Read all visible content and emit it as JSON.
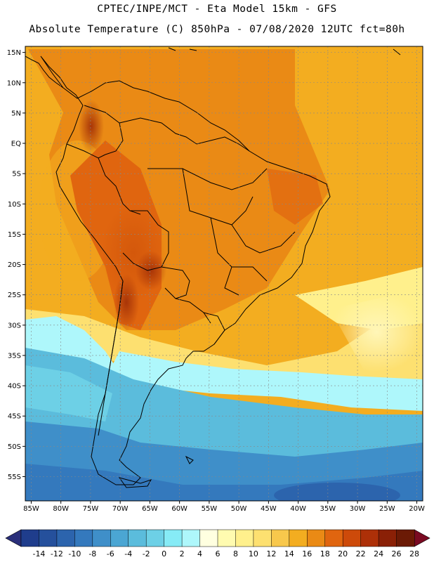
{
  "header": {
    "line1": "CPTEC/INPE/MCT -  Eta Model 15km - GFS",
    "line2": "Absolute Temperature (C) 850hPa - 07/08/2020 12UTC fct=80h"
  },
  "map": {
    "lon_range": [
      -86,
      -19
    ],
    "lat_range": [
      -59,
      16
    ],
    "lat_labels": [
      "15N",
      "10N",
      "5N",
      "EQ",
      "5S",
      "10S",
      "15S",
      "20S",
      "25S",
      "30S",
      "35S",
      "40S",
      "45S",
      "50S",
      "55S"
    ],
    "lat_values": [
      15,
      10,
      5,
      0,
      -5,
      -10,
      -15,
      -20,
      -25,
      -30,
      -35,
      -40,
      -45,
      -50,
      -55
    ],
    "lon_labels": [
      "85W",
      "80W",
      "75W",
      "70W",
      "65W",
      "60W",
      "55W",
      "50W",
      "45W",
      "40W",
      "35W",
      "30W",
      "25W",
      "20W"
    ],
    "lon_values": [
      -85,
      -80,
      -75,
      -70,
      -65,
      -60,
      -55,
      -50,
      -45,
      -40,
      -35,
      -30,
      -25,
      -20
    ]
  },
  "colorbar": {
    "labels": [
      "-14",
      "-12",
      "-10",
      "-8",
      "-6",
      "-4",
      "-2",
      "0",
      "2",
      "4",
      "6",
      "8",
      "10",
      "12",
      "14",
      "16",
      "18",
      "20",
      "22",
      "24",
      "26",
      "28"
    ],
    "colors": [
      "#1f3d8c",
      "#25509c",
      "#2c64ad",
      "#3479bd",
      "#3f8fc9",
      "#4ba6d3",
      "#5bbcdc",
      "#6dd0e6",
      "#86ebf6",
      "#aef7fb",
      "#ffffe0",
      "#fffbb0",
      "#fff08c",
      "#fde070",
      "#f8c84c",
      "#f3ad20",
      "#ea8a15",
      "#e0650f",
      "#cd4a0a",
      "#ad3008",
      "#8a2006",
      "#6b1a05"
    ],
    "under_color": "#2a2f7a",
    "over_color": "#7a0a22"
  }
}
